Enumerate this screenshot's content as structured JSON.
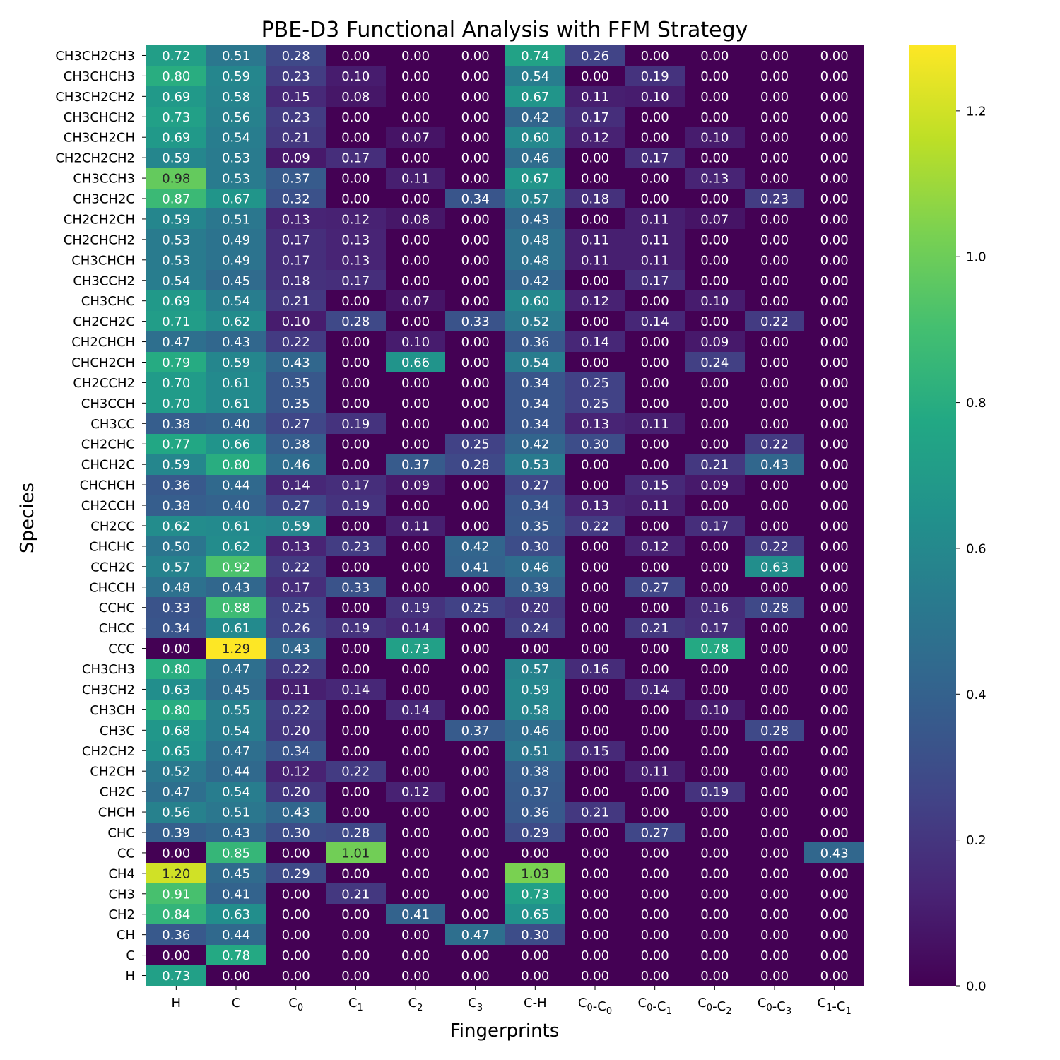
{
  "chart_data": {
    "type": "heatmap",
    "title": "PBE-D3 Functional Analysis with FFM Strategy",
    "xlabel": "Fingerprints",
    "ylabel": "Species",
    "columns": [
      {
        "base": "H",
        "sub": ""
      },
      {
        "base": "C",
        "sub": ""
      },
      {
        "base": "C",
        "sub": "0"
      },
      {
        "base": "C",
        "sub": "1"
      },
      {
        "base": "C",
        "sub": "2"
      },
      {
        "base": "C",
        "sub": "3"
      },
      {
        "base": "C-H",
        "sub": ""
      },
      {
        "base": "C",
        "sub": "0",
        "base2": "-C",
        "sub2": "0"
      },
      {
        "base": "C",
        "sub": "0",
        "base2": "-C",
        "sub2": "1"
      },
      {
        "base": "C",
        "sub": "0",
        "base2": "-C",
        "sub2": "2"
      },
      {
        "base": "C",
        "sub": "0",
        "base2": "-C",
        "sub2": "3"
      },
      {
        "base": "C",
        "sub": "1",
        "base2": "-C",
        "sub2": "1"
      }
    ],
    "rows": [
      "CH3CH2CH3",
      "CH3CHCH3",
      "CH3CH2CH2",
      "CH3CHCH2",
      "CH3CH2CH",
      "CH2CH2CH2",
      "CH3CCH3",
      "CH3CH2C",
      "CH2CH2CH",
      "CH2CHCH2",
      "CH3CHCH",
      "CH3CCH2",
      "CH3CHC",
      "CH2CH2C",
      "CH2CHCH",
      "CHCH2CH",
      "CH2CCH2",
      "CH3CCH",
      "CH3CC",
      "CH2CHC",
      "CHCH2C",
      "CHCHCH",
      "CH2CCH",
      "CH2CC",
      "CHCHC",
      "CCH2C",
      "CHCCH",
      "CCHC",
      "CHCC",
      "CCC",
      "CH3CH3",
      "CH3CH2",
      "CH3CH",
      "CH3C",
      "CH2CH2",
      "CH2CH",
      "CH2C",
      "CHCH",
      "CHC",
      "CC",
      "CH4",
      "CH3",
      "CH2",
      "CH",
      "C",
      "H"
    ],
    "values": [
      [
        0.72,
        0.51,
        0.28,
        0.0,
        0.0,
        0.0,
        0.74,
        0.26,
        0.0,
        0.0,
        0.0,
        0.0
      ],
      [
        0.8,
        0.59,
        0.23,
        0.1,
        0.0,
        0.0,
        0.54,
        0.0,
        0.19,
        0.0,
        0.0,
        0.0
      ],
      [
        0.69,
        0.58,
        0.15,
        0.08,
        0.0,
        0.0,
        0.67,
        0.11,
        0.1,
        0.0,
        0.0,
        0.0
      ],
      [
        0.73,
        0.56,
        0.23,
        0.0,
        0.0,
        0.0,
        0.42,
        0.17,
        0.0,
        0.0,
        0.0,
        0.0
      ],
      [
        0.69,
        0.54,
        0.21,
        0.0,
        0.07,
        0.0,
        0.6,
        0.12,
        0.0,
        0.1,
        0.0,
        0.0
      ],
      [
        0.59,
        0.53,
        0.09,
        0.17,
        0.0,
        0.0,
        0.46,
        0.0,
        0.17,
        0.0,
        0.0,
        0.0
      ],
      [
        0.98,
        0.53,
        0.37,
        0.0,
        0.11,
        0.0,
        0.67,
        0.0,
        0.0,
        0.13,
        0.0,
        0.0
      ],
      [
        0.87,
        0.67,
        0.32,
        0.0,
        0.0,
        0.34,
        0.57,
        0.18,
        0.0,
        0.0,
        0.23,
        0.0
      ],
      [
        0.59,
        0.51,
        0.13,
        0.12,
        0.08,
        0.0,
        0.43,
        0.0,
        0.11,
        0.07,
        0.0,
        0.0
      ],
      [
        0.53,
        0.49,
        0.17,
        0.13,
        0.0,
        0.0,
        0.48,
        0.11,
        0.11,
        0.0,
        0.0,
        0.0
      ],
      [
        0.53,
        0.49,
        0.17,
        0.13,
        0.0,
        0.0,
        0.48,
        0.11,
        0.11,
        0.0,
        0.0,
        0.0
      ],
      [
        0.54,
        0.45,
        0.18,
        0.17,
        0.0,
        0.0,
        0.42,
        0.0,
        0.17,
        0.0,
        0.0,
        0.0
      ],
      [
        0.69,
        0.54,
        0.21,
        0.0,
        0.07,
        0.0,
        0.6,
        0.12,
        0.0,
        0.1,
        0.0,
        0.0
      ],
      [
        0.71,
        0.62,
        0.1,
        0.28,
        0.0,
        0.33,
        0.52,
        0.0,
        0.14,
        0.0,
        0.22,
        0.0
      ],
      [
        0.47,
        0.43,
        0.22,
        0.0,
        0.1,
        0.0,
        0.36,
        0.14,
        0.0,
        0.09,
        0.0,
        0.0
      ],
      [
        0.79,
        0.59,
        0.43,
        0.0,
        0.66,
        0.0,
        0.54,
        0.0,
        0.0,
        0.24,
        0.0,
        0.0
      ],
      [
        0.7,
        0.61,
        0.35,
        0.0,
        0.0,
        0.0,
        0.34,
        0.25,
        0.0,
        0.0,
        0.0,
        0.0
      ],
      [
        0.7,
        0.61,
        0.35,
        0.0,
        0.0,
        0.0,
        0.34,
        0.25,
        0.0,
        0.0,
        0.0,
        0.0
      ],
      [
        0.38,
        0.4,
        0.27,
        0.19,
        0.0,
        0.0,
        0.34,
        0.13,
        0.11,
        0.0,
        0.0,
        0.0
      ],
      [
        0.77,
        0.66,
        0.38,
        0.0,
        0.0,
        0.25,
        0.42,
        0.3,
        0.0,
        0.0,
        0.22,
        0.0
      ],
      [
        0.59,
        0.8,
        0.46,
        0.0,
        0.37,
        0.28,
        0.53,
        0.0,
        0.0,
        0.21,
        0.43,
        0.0
      ],
      [
        0.36,
        0.44,
        0.14,
        0.17,
        0.09,
        0.0,
        0.27,
        0.0,
        0.15,
        0.09,
        0.0,
        0.0
      ],
      [
        0.38,
        0.4,
        0.27,
        0.19,
        0.0,
        0.0,
        0.34,
        0.13,
        0.11,
        0.0,
        0.0,
        0.0
      ],
      [
        0.62,
        0.61,
        0.59,
        0.0,
        0.11,
        0.0,
        0.35,
        0.22,
        0.0,
        0.17,
        0.0,
        0.0
      ],
      [
        0.5,
        0.62,
        0.13,
        0.23,
        0.0,
        0.42,
        0.3,
        0.0,
        0.12,
        0.0,
        0.22,
        0.0
      ],
      [
        0.57,
        0.92,
        0.22,
        0.0,
        0.0,
        0.41,
        0.46,
        0.0,
        0.0,
        0.0,
        0.63,
        0.0
      ],
      [
        0.48,
        0.43,
        0.17,
        0.33,
        0.0,
        0.0,
        0.39,
        0.0,
        0.27,
        0.0,
        0.0,
        0.0
      ],
      [
        0.33,
        0.88,
        0.25,
        0.0,
        0.19,
        0.25,
        0.2,
        0.0,
        0.0,
        0.16,
        0.28,
        0.0
      ],
      [
        0.34,
        0.61,
        0.26,
        0.19,
        0.14,
        0.0,
        0.24,
        0.0,
        0.21,
        0.17,
        0.0,
        0.0
      ],
      [
        0.0,
        1.29,
        0.43,
        0.0,
        0.73,
        0.0,
        0.0,
        0.0,
        0.0,
        0.78,
        0.0,
        0.0
      ],
      [
        0.8,
        0.47,
        0.22,
        0.0,
        0.0,
        0.0,
        0.57,
        0.16,
        0.0,
        0.0,
        0.0,
        0.0
      ],
      [
        0.63,
        0.45,
        0.11,
        0.14,
        0.0,
        0.0,
        0.59,
        0.0,
        0.14,
        0.0,
        0.0,
        0.0
      ],
      [
        0.8,
        0.55,
        0.22,
        0.0,
        0.14,
        0.0,
        0.58,
        0.0,
        0.0,
        0.1,
        0.0,
        0.0
      ],
      [
        0.68,
        0.54,
        0.2,
        0.0,
        0.0,
        0.37,
        0.46,
        0.0,
        0.0,
        0.0,
        0.28,
        0.0
      ],
      [
        0.65,
        0.47,
        0.34,
        0.0,
        0.0,
        0.0,
        0.51,
        0.15,
        0.0,
        0.0,
        0.0,
        0.0
      ],
      [
        0.52,
        0.44,
        0.12,
        0.22,
        0.0,
        0.0,
        0.38,
        0.0,
        0.11,
        0.0,
        0.0,
        0.0
      ],
      [
        0.47,
        0.54,
        0.2,
        0.0,
        0.12,
        0.0,
        0.37,
        0.0,
        0.0,
        0.19,
        0.0,
        0.0
      ],
      [
        0.56,
        0.51,
        0.43,
        0.0,
        0.0,
        0.0,
        0.36,
        0.21,
        0.0,
        0.0,
        0.0,
        0.0
      ],
      [
        0.39,
        0.43,
        0.3,
        0.28,
        0.0,
        0.0,
        0.29,
        0.0,
        0.27,
        0.0,
        0.0,
        0.0
      ],
      [
        0.0,
        0.85,
        0.0,
        1.01,
        0.0,
        0.0,
        0.0,
        0.0,
        0.0,
        0.0,
        0.0,
        0.43
      ],
      [
        1.2,
        0.45,
        0.29,
        0.0,
        0.0,
        0.0,
        1.03,
        0.0,
        0.0,
        0.0,
        0.0,
        0.0
      ],
      [
        0.91,
        0.41,
        0.0,
        0.21,
        0.0,
        0.0,
        0.73,
        0.0,
        0.0,
        0.0,
        0.0,
        0.0
      ],
      [
        0.84,
        0.63,
        0.0,
        0.0,
        0.41,
        0.0,
        0.65,
        0.0,
        0.0,
        0.0,
        0.0,
        0.0
      ],
      [
        0.36,
        0.44,
        0.0,
        0.0,
        0.0,
        0.47,
        0.3,
        0.0,
        0.0,
        0.0,
        0.0,
        0.0
      ],
      [
        0.0,
        0.78,
        0.0,
        0.0,
        0.0,
        0.0,
        0.0,
        0.0,
        0.0,
        0.0,
        0.0,
        0.0
      ],
      [
        0.73,
        0.0,
        0.0,
        0.0,
        0.0,
        0.0,
        0.0,
        0.0,
        0.0,
        0.0,
        0.0,
        0.0
      ]
    ],
    "colormap": "viridis",
    "vmin": 0.0,
    "vmax": 1.29,
    "colorbar_ticks": [
      0.0,
      0.2,
      0.4,
      0.6,
      0.8,
      1.0,
      1.2
    ],
    "colorbar_tick_labels": [
      "0.0",
      "0.2",
      "0.4",
      "0.6",
      "0.8",
      "1.0",
      "1.2"
    ],
    "annotation_format": "0.00",
    "grid": false
  }
}
